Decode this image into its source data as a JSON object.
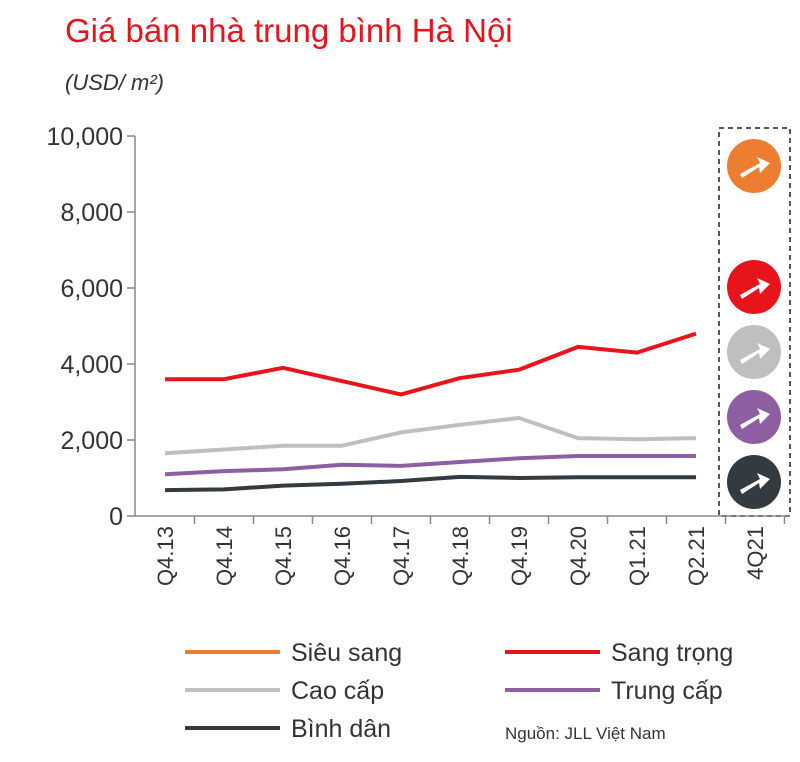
{
  "chart_data": {
    "type": "line",
    "title": "Giá bán nhà trung bình Hà Nội",
    "subtitle": "(USD/ m²)",
    "note": "Nguồn: JLL Việt Nam",
    "categories": [
      "Q4.13",
      "Q4.14",
      "Q4.15",
      "Q4.16",
      "Q4.17",
      "Q4.18",
      "Q4.19",
      "Q4.20",
      "Q1.21",
      "Q2.21",
      "4Q21"
    ],
    "series": [
      {
        "name": "Siêu sang",
        "color": "#ed7d31",
        "values": [
          null,
          null,
          null,
          null,
          null,
          null,
          null,
          null,
          null,
          null,
          null
        ]
      },
      {
        "name": "Sang trọng",
        "color": "#e8141b",
        "values": [
          3600,
          3600,
          3900,
          3550,
          3200,
          3630,
          3850,
          4450,
          4300,
          4800,
          null
        ]
      },
      {
        "name": "Cao cấp",
        "color": "#bfbfbf",
        "values": [
          1650,
          1750,
          1850,
          1850,
          2200,
          2400,
          2580,
          2050,
          2020,
          2050,
          null
        ]
      },
      {
        "name": "Trung cấp",
        "color": "#8e5ea2",
        "values": [
          1100,
          1180,
          1230,
          1350,
          1320,
          1420,
          1520,
          1580,
          1580,
          1580,
          null
        ]
      },
      {
        "name": "Bình dân",
        "color": "#333a40",
        "values": [
          680,
          700,
          800,
          850,
          920,
          1030,
          1000,
          1020,
          1020,
          1020,
          null
        ]
      }
    ],
    "ylim": [
      0,
      10000
    ],
    "yticks": [
      0,
      {
        "value": 2000,
        "label": "2,000"
      },
      {
        "value": 4000,
        "label": "4,000"
      },
      {
        "value": 6000,
        "label": "6,000"
      },
      {
        "value": 8000,
        "label": "8,000"
      },
      {
        "value": 10000,
        "label": "10,000"
      }
    ]
  }
}
